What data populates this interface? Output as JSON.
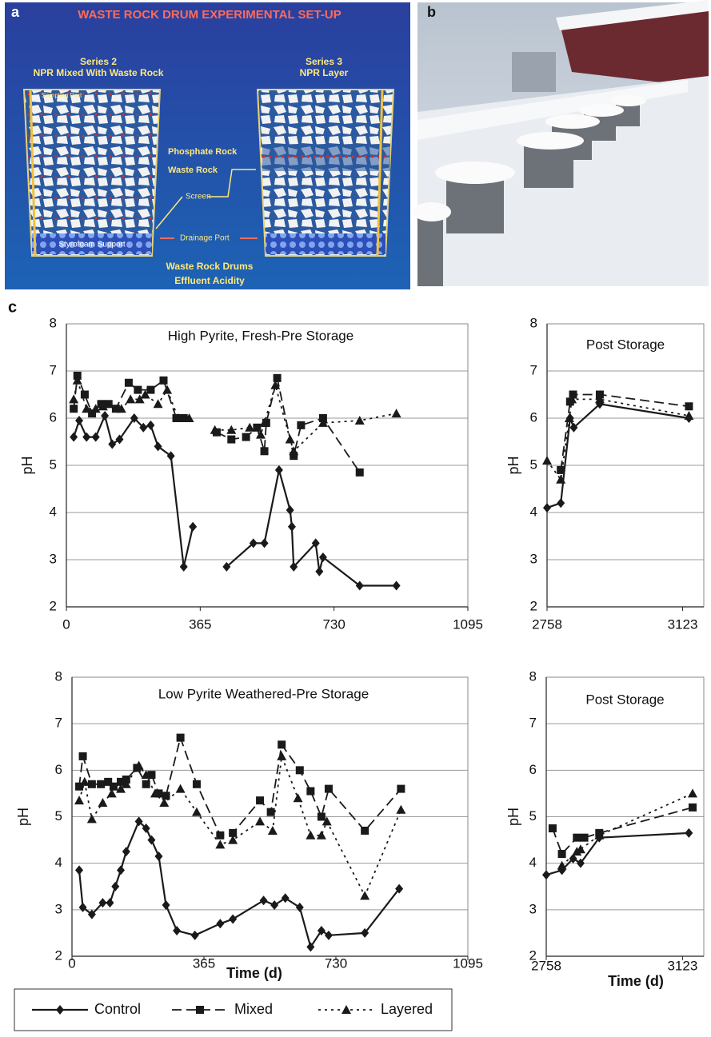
{
  "panels": {
    "a": "a",
    "b": "b",
    "c": "c"
  },
  "diagram": {
    "title": "WASTE ROCK DRUM EXPERIMENTAL SET-UP",
    "left_series": "Series 2",
    "left_desc": "NPR Mixed With Waste Rock",
    "right_series": "Series 3",
    "right_desc": "NPR Layer",
    "sampling": "Sampling Port",
    "phosphate": "Phosphate Rock",
    "waste": "Waste Rock",
    "screen": "Screen",
    "drainage": "Drainage Port",
    "support": "Styrofoam Support",
    "footer1": "Waste Rock Drums",
    "footer2": "Effluent Acidity"
  },
  "chart_data": [
    {
      "type": "line",
      "title": "High Pyrite, Fresh-Pre Storage",
      "ylabel": "pH",
      "xlim": [
        0,
        1095
      ],
      "xticks": [
        0,
        365,
        730,
        1095
      ],
      "ylim": [
        2,
        8
      ],
      "yticks": [
        2,
        3,
        4,
        5,
        6,
        7,
        8
      ],
      "grid": true,
      "series": [
        {
          "name": "Control",
          "color": "#1a1a1a",
          "marker": "diamond",
          "dash": "none",
          "x": [
            20,
            35,
            55,
            80,
            105,
            125,
            145,
            185,
            210,
            230,
            250,
            285,
            320,
            345,
            null,
            437,
            510,
            540,
            580,
            610,
            615,
            620,
            680,
            690,
            700,
            800,
            900
          ],
          "values": [
            5.6,
            5.95,
            5.6,
            5.6,
            6.05,
            5.45,
            5.55,
            6.0,
            5.8,
            5.85,
            5.4,
            5.2,
            2.85,
            3.7,
            null,
            2.85,
            3.35,
            3.35,
            4.9,
            4.05,
            3.7,
            2.85,
            3.35,
            2.75,
            3.05,
            2.45,
            2.45
          ]
        },
        {
          "name": "Mixed",
          "color": "#1a1a1a",
          "marker": "square",
          "dash": "12 6",
          "x": [
            20,
            30,
            50,
            70,
            95,
            115,
            135,
            170,
            195,
            230,
            265,
            300,
            320,
            null,
            410,
            450,
            490,
            520,
            540,
            545,
            575,
            620,
            640,
            700,
            800
          ],
          "values": [
            6.2,
            6.9,
            6.5,
            6.1,
            6.3,
            6.3,
            6.2,
            6.75,
            6.6,
            6.6,
            6.8,
            6.0,
            6.0,
            null,
            5.7,
            5.55,
            5.6,
            5.8,
            5.3,
            5.9,
            6.85,
            5.2,
            5.85,
            6.0,
            4.85
          ]
        },
        {
          "name": "Layered",
          "color": "#1a1a1a",
          "marker": "triangle",
          "dash": "3 5",
          "x": [
            20,
            30,
            55,
            80,
            100,
            150,
            175,
            200,
            215,
            250,
            275,
            305,
            335,
            null,
            405,
            450,
            500,
            530,
            540,
            570,
            610,
            620,
            700,
            800,
            900
          ],
          "values": [
            6.4,
            6.8,
            6.2,
            6.2,
            6.25,
            6.2,
            6.4,
            6.4,
            6.5,
            6.3,
            6.6,
            6.0,
            6.0,
            null,
            5.75,
            5.75,
            5.8,
            5.65,
            5.9,
            6.7,
            5.55,
            5.3,
            5.9,
            5.95,
            6.1
          ]
        }
      ]
    },
    {
      "type": "line",
      "title": "Post Storage",
      "ylabel": "pH",
      "xlim": [
        2758,
        3180
      ],
      "xticks": [
        2758,
        3123
      ],
      "ylim": [
        2,
        8
      ],
      "yticks": [
        2,
        3,
        4,
        5,
        6,
        7,
        8
      ],
      "grid": true,
      "series": [
        {
          "color": "#1a1a1a",
          "x": [
            2758,
            2795,
            2820,
            2830,
            2900,
            3140
          ],
          "values": [
            4.1,
            4.2,
            6.0,
            5.8,
            6.3,
            6.0
          ]
        },
        {
          "color": "#1a1a1a",
          "x": [
            2795,
            2820,
            2828,
            2900,
            3140
          ],
          "values": [
            4.9,
            6.35,
            6.5,
            6.5,
            6.25
          ]
        },
        {
          "color": "#1a1a1a",
          "x": [
            2758,
            2795,
            2818,
            2825,
            2900,
            3140
          ],
          "values": [
            5.1,
            4.7,
            6.0,
            6.4,
            6.4,
            6.05
          ]
        }
      ]
    },
    {
      "type": "line",
      "title": "Low Pyrite Weathered-Pre Storage",
      "ylabel": "pH",
      "xlabel": "Time (d)",
      "xlim": [
        0,
        1095
      ],
      "xticks": [
        0,
        365,
        730,
        1095
      ],
      "ylim": [
        2,
        8
      ],
      "yticks": [
        2,
        3,
        4,
        5,
        6,
        7,
        8
      ],
      "grid": true,
      "series": [
        {
          "color": "#1a1a1a",
          "x": [
            20,
            30,
            55,
            85,
            105,
            120,
            135,
            150,
            185,
            205,
            220,
            240,
            260,
            290,
            340,
            410,
            445,
            530,
            560,
            590,
            630,
            660,
            690,
            710,
            810,
            905
          ],
          "values": [
            3.85,
            3.05,
            2.9,
            3.15,
            3.15,
            3.5,
            3.85,
            4.25,
            4.9,
            4.75,
            4.5,
            4.15,
            3.1,
            2.55,
            2.45,
            2.7,
            2.8,
            3.2,
            3.1,
            3.25,
            3.05,
            2.2,
            2.55,
            2.45,
            2.5,
            3.45
          ]
        },
        {
          "color": "#1a1a1a",
          "x": [
            20,
            30,
            55,
            80,
            100,
            115,
            135,
            150,
            180,
            205,
            220,
            240,
            260,
            300,
            345,
            410,
            445,
            520,
            550,
            580,
            630,
            660,
            690,
            710,
            810,
            910
          ],
          "values": [
            5.65,
            6.3,
            5.7,
            5.7,
            5.75,
            5.65,
            5.75,
            5.8,
            6.05,
            5.7,
            5.9,
            5.5,
            5.45,
            6.7,
            5.7,
            4.6,
            4.65,
            5.35,
            5.1,
            6.55,
            6.0,
            5.55,
            5.0,
            5.6,
            4.7,
            5.6
          ]
        },
        {
          "color": "#1a1a1a",
          "x": [
            20,
            35,
            55,
            85,
            110,
            135,
            150,
            185,
            205,
            230,
            255,
            300,
            345,
            410,
            445,
            520,
            555,
            580,
            625,
            660,
            690,
            705,
            810,
            910
          ],
          "values": [
            5.35,
            5.75,
            4.95,
            5.3,
            5.5,
            5.6,
            5.7,
            6.1,
            5.9,
            5.5,
            5.3,
            5.6,
            5.1,
            4.4,
            4.5,
            4.9,
            4.7,
            6.3,
            5.4,
            4.6,
            4.6,
            4.9,
            3.3,
            5.15
          ]
        }
      ]
    },
    {
      "type": "line",
      "title": "Post Storage",
      "ylabel": "pH",
      "xlabel": "Time (d)",
      "xlim": [
        2758,
        3180
      ],
      "xticks": [
        2758,
        3123
      ],
      "ylim": [
        2,
        8
      ],
      "yticks": [
        2,
        3,
        4,
        5,
        6,
        7,
        8
      ],
      "grid": true,
      "series": [
        {
          "color": "#1a1a1a",
          "x": [
            2758,
            2800,
            2830,
            2850,
            2900,
            3140
          ],
          "values": [
            3.75,
            3.85,
            4.1,
            4.0,
            4.55,
            4.65
          ]
        },
        {
          "color": "#1a1a1a",
          "x": [
            2775,
            2800,
            2840,
            2860,
            2900,
            3150
          ],
          "values": [
            4.75,
            4.2,
            4.55,
            4.55,
            4.65,
            5.2
          ]
        },
        {
          "color": "#1a1a1a",
          "x": [
            2800,
            2840,
            2850,
            2900,
            3150
          ],
          "values": [
            3.95,
            4.25,
            4.3,
            4.6,
            5.5
          ]
        }
      ]
    }
  ]
}
